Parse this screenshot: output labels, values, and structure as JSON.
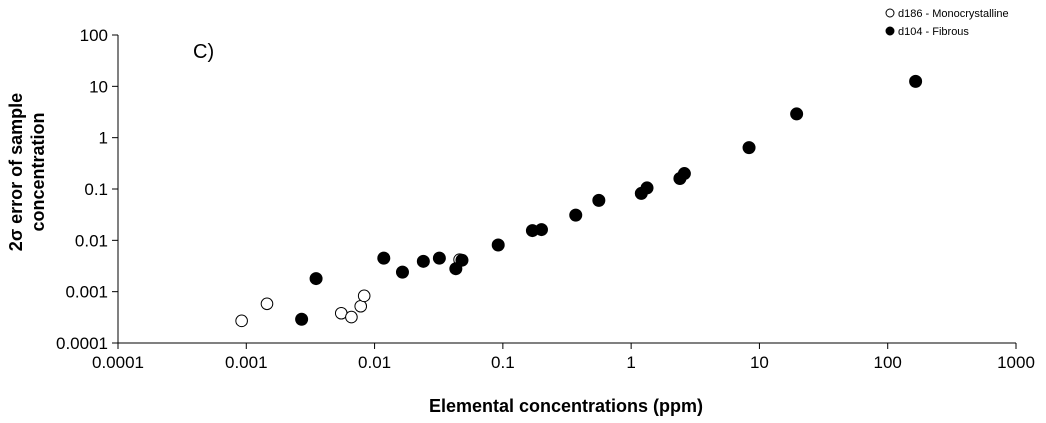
{
  "chart_data": {
    "type": "scatter",
    "panel_label": "C)",
    "xlabel": "Elemental concentrations (ppm)",
    "ylabel": "2σ error of sample concentration",
    "xscale": "log",
    "yscale": "log",
    "xlim": [
      0.0001,
      1000
    ],
    "ylim": [
      0.0001,
      100
    ],
    "x_ticks": [
      "0.0001",
      "0.001",
      "0.01",
      "0.1",
      "1",
      "10",
      "100",
      "1000"
    ],
    "y_ticks": [
      "0.0001",
      "0.001",
      "0.01",
      "0.1",
      "1",
      "10",
      "100"
    ],
    "grid": false,
    "legend_position": "top-right",
    "series": [
      {
        "name": "d186 - Monocrystalline",
        "marker": "open-circle",
        "color": "#000000",
        "points": [
          {
            "x": 0.00092,
            "y": 0.00027
          },
          {
            "x": 0.00145,
            "y": 0.00058
          },
          {
            "x": 0.0055,
            "y": 0.00038
          },
          {
            "x": 0.0066,
            "y": 0.00032
          },
          {
            "x": 0.0078,
            "y": 0.00052
          },
          {
            "x": 0.0083,
            "y": 0.00083
          },
          {
            "x": 0.046,
            "y": 0.0042
          }
        ]
      },
      {
        "name": "d104 - Fibrous",
        "marker": "filled-circle",
        "color": "#000000",
        "points": [
          {
            "x": 0.0027,
            "y": 0.00029
          },
          {
            "x": 0.0035,
            "y": 0.0018
          },
          {
            "x": 0.0118,
            "y": 0.0045
          },
          {
            "x": 0.0165,
            "y": 0.0024
          },
          {
            "x": 0.024,
            "y": 0.0039
          },
          {
            "x": 0.032,
            "y": 0.0045
          },
          {
            "x": 0.043,
            "y": 0.0028
          },
          {
            "x": 0.048,
            "y": 0.0041
          },
          {
            "x": 0.092,
            "y": 0.0081
          },
          {
            "x": 0.17,
            "y": 0.0155
          },
          {
            "x": 0.2,
            "y": 0.0162
          },
          {
            "x": 0.37,
            "y": 0.031
          },
          {
            "x": 0.56,
            "y": 0.06
          },
          {
            "x": 1.2,
            "y": 0.082
          },
          {
            "x": 1.33,
            "y": 0.105
          },
          {
            "x": 2.4,
            "y": 0.16
          },
          {
            "x": 2.6,
            "y": 0.2
          },
          {
            "x": 8.3,
            "y": 0.64
          },
          {
            "x": 19.5,
            "y": 2.9
          },
          {
            "x": 165,
            "y": 12.5
          }
        ]
      }
    ]
  }
}
